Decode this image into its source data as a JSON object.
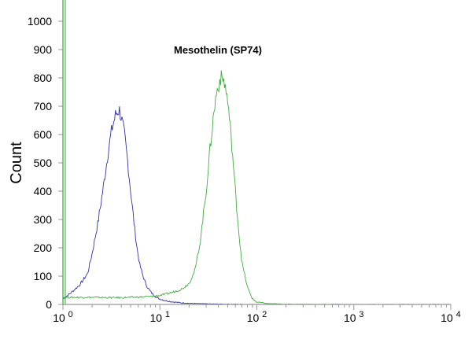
{
  "chart_data": {
    "type": "line",
    "title": "",
    "xlabel": "",
    "ylabel": "Count",
    "annotation": "Mesothelin  (SP74)",
    "x_scale": "log",
    "xlim": [
      1,
      10000
    ],
    "ylim": [
      0,
      1000
    ],
    "x_ticks": [
      {
        "base": "10",
        "exp": "0",
        "value": 1
      },
      {
        "base": "10",
        "exp": "1",
        "value": 10
      },
      {
        "base": "10",
        "exp": "2",
        "value": 100
      },
      {
        "base": "10",
        "exp": "3",
        "value": 1000
      },
      {
        "base": "10",
        "exp": "4",
        "value": 10000
      }
    ],
    "y_ticks": [
      0,
      100,
      200,
      300,
      400,
      500,
      600,
      700,
      800,
      900,
      1000
    ],
    "grid": false,
    "legend": "none",
    "series": [
      {
        "color": "#3333aa",
        "x": [
          1.0,
          1.2,
          1.5,
          1.8,
          2.0,
          2.3,
          2.6,
          2.9,
          3.2,
          3.5,
          3.8,
          4.0,
          4.3,
          4.6,
          5.0,
          5.4,
          5.8,
          6.2,
          6.7,
          7.2,
          7.8,
          8.5,
          9.5,
          11,
          13,
          16,
          20,
          30,
          50,
          100,
          1000,
          10000
        ],
        "y": [
          20,
          40,
          70,
          110,
          180,
          290,
          410,
          530,
          620,
          670,
          690,
          660,
          600,
          520,
          400,
          290,
          200,
          140,
          100,
          70,
          50,
          35,
          22,
          15,
          10,
          6,
          4,
          2,
          1,
          0,
          0,
          0
        ]
      },
      {
        "color": "#44aa44",
        "x": [
          1.0,
          1.5,
          2.0,
          3.0,
          4.0,
          5.0,
          6.0,
          8.0,
          10,
          12,
          14,
          17,
          20,
          23,
          26,
          30,
          34,
          38,
          42,
          46,
          50,
          55,
          60,
          65,
          70,
          80,
          90,
          100,
          130,
          200,
          1000,
          10000
        ],
        "y": [
          25,
          25,
          25,
          24,
          24,
          25,
          26,
          28,
          32,
          38,
          45,
          55,
          75,
          120,
          220,
          400,
          600,
          740,
          800,
          790,
          720,
          570,
          400,
          260,
          150,
          60,
          20,
          8,
          3,
          1,
          0,
          0
        ]
      }
    ]
  }
}
